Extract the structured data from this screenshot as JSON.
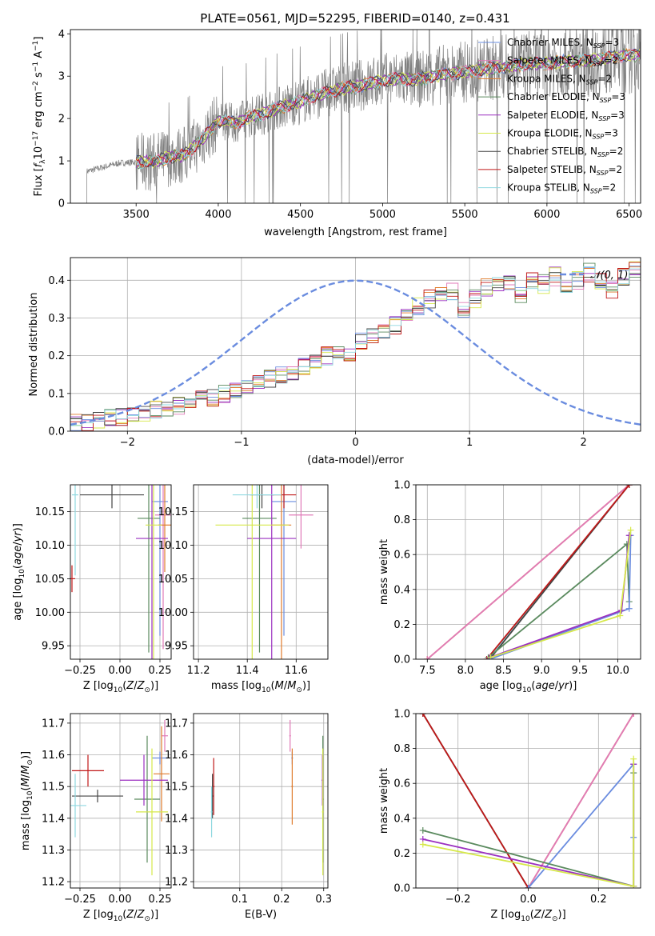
{
  "figure_title": "PLATE=0561, MJD=52295, FIBERID=0140, z=0.431",
  "colors": {
    "Chabrier MILES": "#6a8cdf",
    "Salpeter MILES": "#e07ab8",
    "Kroupa MILES": "#e07b2c",
    "Chabrier ELODIE": "#5a8a5e",
    "Salpeter ELODIE": "#9b30c0",
    "Kroupa ELODIE": "#d6e84a",
    "Chabrier STELIB": "#444444",
    "Salpeter STELIB": "#c01818",
    "Kroupa STELIB": "#8fd8e0",
    "data": "#808080",
    "gauss": "#6a8cdf"
  },
  "legend_labels": [
    {
      "key": "Chabrier MILES",
      "pre": "Chabrier MILES, N",
      "sub": "SSP",
      "post": "=3"
    },
    {
      "key": "Salpeter MILES",
      "pre": "Salpeter MILES, N",
      "sub": "SSP",
      "post": "=2"
    },
    {
      "key": "Kroupa MILES",
      "pre": "Kroupa MILES, N",
      "sub": "SSP",
      "post": "=2"
    },
    {
      "key": "Chabrier ELODIE",
      "pre": "Chabrier ELODIE, N",
      "sub": "SSP",
      "post": "=3"
    },
    {
      "key": "Salpeter ELODIE",
      "pre": "Salpeter ELODIE, N",
      "sub": "SSP",
      "post": "=3"
    },
    {
      "key": "Kroupa ELODIE",
      "pre": "Kroupa ELODIE, N",
      "sub": "SSP",
      "post": "=3"
    },
    {
      "key": "Chabrier STELIB",
      "pre": "Chabrier STELIB, N",
      "sub": "SSP",
      "post": "=2"
    },
    {
      "key": "Salpeter STELIB",
      "pre": "Salpeter STELIB, N",
      "sub": "SSP",
      "post": "=2"
    },
    {
      "key": "Kroupa STELIB",
      "pre": "Kroupa STELIB, N",
      "sub": "SSP",
      "post": "=2"
    }
  ],
  "chart_data": [
    {
      "id": "spectrum",
      "type": "line",
      "xlabel": "wavelength [Angstrom, rest frame]",
      "ylabel": "Flux [f_λ 10^-17 erg cm^-2 s^-1 A^-1]",
      "xlim": [
        3100,
        6570
      ],
      "ylim": [
        0,
        4.1
      ],
      "xticks": [
        3500,
        4000,
        4500,
        5000,
        5500,
        6000,
        6500
      ],
      "yticks": [
        0,
        1,
        2,
        3,
        4
      ],
      "continuum_nodes": [
        [
          3200,
          0.75
        ],
        [
          3300,
          0.85
        ],
        [
          3400,
          0.95
        ],
        [
          3500,
          0.97
        ],
        [
          3600,
          0.98
        ],
        [
          3700,
          1.08
        ],
        [
          3800,
          1.15
        ],
        [
          3900,
          1.5
        ],
        [
          4000,
          1.95
        ],
        [
          4100,
          1.9
        ],
        [
          4200,
          2.05
        ],
        [
          4300,
          2.15
        ],
        [
          4400,
          2.3
        ],
        [
          4500,
          2.4
        ],
        [
          4600,
          2.55
        ],
        [
          4700,
          2.65
        ],
        [
          4800,
          2.75
        ],
        [
          4900,
          2.8
        ],
        [
          5000,
          2.9
        ],
        [
          5100,
          2.95
        ],
        [
          5200,
          2.9
        ],
        [
          5300,
          3.0
        ],
        [
          5400,
          3.05
        ],
        [
          5500,
          3.1
        ],
        [
          5600,
          3.15
        ],
        [
          5700,
          3.2
        ],
        [
          5800,
          3.25
        ],
        [
          5900,
          3.3
        ],
        [
          6000,
          3.3
        ],
        [
          6100,
          3.35
        ],
        [
          6200,
          3.35
        ],
        [
          6300,
          3.4
        ],
        [
          6400,
          3.45
        ],
        [
          6500,
          3.5
        ]
      ],
      "data_start": 3200,
      "models_start": 3500,
      "legend_position": "top-right"
    },
    {
      "id": "residuals",
      "type": "histogram",
      "xlabel": "(data-model)/error",
      "ylabel": "Normed distribution",
      "xlim": [
        -2.5,
        2.5
      ],
      "ylim": [
        0,
        0.46
      ],
      "xticks": [
        -2,
        -1,
        0,
        1,
        2
      ],
      "yticks": [
        0.0,
        0.1,
        0.2,
        0.3,
        0.4
      ],
      "bin_width": 0.1,
      "base_profile": [
        0.02,
        0.025,
        0.03,
        0.035,
        0.04,
        0.045,
        0.05,
        0.055,
        0.06,
        0.07,
        0.08,
        0.085,
        0.09,
        0.1,
        0.11,
        0.12,
        0.13,
        0.14,
        0.15,
        0.16,
        0.17,
        0.18,
        0.2,
        0.2,
        0.21,
        0.24,
        0.25,
        0.27,
        0.28,
        0.3,
        0.33,
        0.35,
        0.36,
        0.37,
        0.32,
        0.35,
        0.38,
        0.39,
        0.4,
        0.36,
        0.4,
        0.39,
        0.41,
        0.38,
        0.4,
        0.42,
        0.4,
        0.37,
        0.41,
        0.43,
        0.4,
        0.35,
        0.33,
        0.3,
        0.28,
        0.26,
        0.24,
        0.23,
        0.2,
        0.18,
        0.17,
        0.15,
        0.13,
        0.12,
        0.11,
        0.1,
        0.09,
        0.08,
        0.07,
        0.06,
        0.055,
        0.05,
        0.045,
        0.04,
        0.035,
        0.03,
        0.03,
        0.025,
        0.025,
        0.02
      ],
      "legend": "N(0,1)",
      "legend_position": "top-right"
    },
    {
      "id": "age_vs_Z",
      "type": "errorbar",
      "xlabel": "Z [log10(Z/Z_sun)]",
      "ylabel": "age [log10(age/yr)]",
      "xlim": [
        -0.31,
        0.32
      ],
      "ylim": [
        9.93,
        10.19
      ],
      "xticks": [
        -0.25,
        0.0,
        0.25
      ],
      "yticks": [
        9.95,
        10.0,
        10.05,
        10.1,
        10.15
      ],
      "points": [
        {
          "key": "Chabrier MILES",
          "x": 0.25,
          "y": 10.165,
          "xerr": 0.05,
          "yerr": 0.2
        },
        {
          "key": "Salpeter MILES",
          "x": 0.27,
          "y": 10.145,
          "xerr": 0.05,
          "yerr": 0.2
        },
        {
          "key": "Kroupa MILES",
          "x": 0.28,
          "y": 10.13,
          "xerr": 0.04,
          "yerr": 0.07
        },
        {
          "key": "Chabrier ELODIE",
          "x": 0.18,
          "y": 10.14,
          "xerr": 0.07,
          "yerr": 0.2
        },
        {
          "key": "Salpeter ELODIE",
          "x": 0.2,
          "y": 10.11,
          "xerr": 0.1,
          "yerr": 0.2
        },
        {
          "key": "Kroupa ELODIE",
          "x": 0.21,
          "y": 10.13,
          "xerr": 0.05,
          "yerr": 0.2
        },
        {
          "key": "Chabrier STELIB",
          "x": -0.05,
          "y": 10.175,
          "xerr": 0.2,
          "yerr": 0.02
        },
        {
          "key": "Salpeter STELIB",
          "x": -0.3,
          "y": 10.05,
          "xerr": 0.02,
          "yerr": 0.02
        },
        {
          "key": "Kroupa STELIB",
          "x": -0.28,
          "y": 10.175,
          "xerr": 0.02,
          "yerr": 0.12
        }
      ]
    },
    {
      "id": "age_vs_mass",
      "type": "errorbar",
      "xlabel": "mass [log10(M/M_sun)]",
      "ylabel": "",
      "xlim": [
        11.18,
        11.73
      ],
      "ylim": [
        9.93,
        10.19
      ],
      "xticks": [
        11.2,
        11.4,
        11.6
      ],
      "yticks": [
        9.95,
        10.0,
        10.05,
        10.1,
        10.15
      ],
      "points": [
        {
          "key": "Chabrier MILES",
          "x": 11.55,
          "y": 10.165,
          "xerr": 0.05,
          "yerr": 0.2
        },
        {
          "key": "Salpeter MILES",
          "x": 11.62,
          "y": 10.145,
          "xerr": 0.05,
          "yerr": 0.05
        },
        {
          "key": "Kroupa MILES",
          "x": 11.54,
          "y": 10.13,
          "xerr": 0.04,
          "yerr": 0.2
        },
        {
          "key": "Chabrier ELODIE",
          "x": 11.45,
          "y": 10.14,
          "xerr": 0.07,
          "yerr": 0.2
        },
        {
          "key": "Salpeter ELODIE",
          "x": 11.5,
          "y": 10.11,
          "xerr": 0.1,
          "yerr": 0.2
        },
        {
          "key": "Kroupa ELODIE",
          "x": 11.42,
          "y": 10.13,
          "xerr": 0.15,
          "yerr": 0.2
        },
        {
          "key": "Chabrier STELIB",
          "x": 11.46,
          "y": 10.175,
          "xerr": 0.05,
          "yerr": 0.02
        },
        {
          "key": "Salpeter STELIB",
          "x": 11.55,
          "y": 10.175,
          "xerr": 0.05,
          "yerr": 0.02
        },
        {
          "key": "Kroupa STELIB",
          "x": 11.44,
          "y": 10.175,
          "xerr": 0.1,
          "yerr": 0.02
        }
      ]
    },
    {
      "id": "weight_vs_age",
      "type": "line",
      "xlabel": "age [log10(age/yr)]",
      "ylabel": "mass weight",
      "xlim": [
        7.35,
        10.3
      ],
      "ylim": [
        0,
        1
      ],
      "xticks": [
        7.5,
        8.0,
        8.5,
        9.0,
        9.5,
        10.0
      ],
      "yticks": [
        0.0,
        0.2,
        0.4,
        0.6,
        0.8,
        1.0
      ],
      "series": [
        {
          "key": "Kroupa MILES",
          "x": [
            7.5,
            10.15
          ],
          "y": [
            0.0,
            1.0
          ]
        },
        {
          "key": "Salpeter MILES",
          "x": [
            7.5,
            10.15
          ],
          "y": [
            0.0,
            1.0
          ]
        },
        {
          "key": "Kroupa STELIB",
          "x": [
            8.3,
            10.15
          ],
          "y": [
            0.0,
            1.0
          ]
        },
        {
          "key": "Chabrier STELIB",
          "x": [
            8.32,
            10.15
          ],
          "y": [
            0.0,
            1.0
          ]
        },
        {
          "key": "Salpeter STELIB",
          "x": [
            8.28,
            10.15
          ],
          "y": [
            0.0,
            1.0
          ]
        },
        {
          "key": "Chabrier ELODIE",
          "x": [
            8.3,
            10.12,
            10.15
          ],
          "y": [
            0.01,
            0.66,
            0.33
          ]
        },
        {
          "key": "Chabrier MILES",
          "x": [
            8.32,
            10.15,
            10.17
          ],
          "y": [
            0.0,
            0.29,
            0.71
          ]
        },
        {
          "key": "Salpeter ELODIE",
          "x": [
            8.32,
            10.05,
            10.15
          ],
          "y": [
            0.01,
            0.28,
            0.71
          ]
        },
        {
          "key": "Kroupa ELODIE",
          "x": [
            8.33,
            10.03,
            10.17
          ],
          "y": [
            0.01,
            0.25,
            0.74
          ]
        }
      ]
    },
    {
      "id": "mass_vs_Z",
      "type": "errorbar",
      "xlabel": "Z [log10(Z/Z_sun)]",
      "ylabel": "mass [log10(M/M_sun)]",
      "xlim": [
        -0.31,
        0.32
      ],
      "ylim": [
        11.18,
        11.73
      ],
      "xticks": [
        -0.25,
        0.0,
        0.25
      ],
      "yticks": [
        11.2,
        11.3,
        11.4,
        11.5,
        11.6,
        11.7
      ],
      "points": [
        {
          "key": "Chabrier MILES",
          "x": 0.25,
          "y": 11.59,
          "xerr": 0.05,
          "yerr": 0.02
        },
        {
          "key": "Salpeter MILES",
          "x": 0.28,
          "y": 11.66,
          "xerr": 0.02,
          "yerr": 0.05
        },
        {
          "key": "Kroupa MILES",
          "x": 0.26,
          "y": 11.54,
          "xerr": 0.05,
          "yerr": 0.15
        },
        {
          "key": "Chabrier ELODIE",
          "x": 0.17,
          "y": 11.46,
          "xerr": 0.08,
          "yerr": 0.2
        },
        {
          "key": "Salpeter ELODIE",
          "x": 0.15,
          "y": 11.52,
          "xerr": 0.15,
          "yerr": 0.08
        },
        {
          "key": "Kroupa ELODIE",
          "x": 0.2,
          "y": 11.42,
          "xerr": 0.1,
          "yerr": 0.2
        },
        {
          "key": "Chabrier STELIB",
          "x": -0.14,
          "y": 11.47,
          "xerr": 0.16,
          "yerr": 0.02
        },
        {
          "key": "Salpeter STELIB",
          "x": -0.2,
          "y": 11.55,
          "xerr": 0.1,
          "yerr": 0.05
        },
        {
          "key": "Kroupa STELIB",
          "x": -0.28,
          "y": 11.44,
          "xerr": 0.07,
          "yerr": 0.1
        }
      ]
    },
    {
      "id": "mass_vs_ebv",
      "type": "errorbar",
      "xlabel": "E(B-V)",
      "ylabel": "",
      "xlim": [
        -0.01,
        0.31
      ],
      "ylim": [
        11.18,
        11.73
      ],
      "xticks": [
        0.1,
        0.2,
        0.3
      ],
      "yticks": [
        11.2,
        11.3,
        11.4,
        11.5,
        11.6,
        11.7
      ],
      "points": [
        {
          "key": "Chabrier MILES",
          "x": 0.225,
          "y": 11.59,
          "xerr": 0.002,
          "yerr": 0.02
        },
        {
          "key": "Salpeter MILES",
          "x": 0.22,
          "y": 11.66,
          "xerr": 0.002,
          "yerr": 0.05
        },
        {
          "key": "Kroupa MILES",
          "x": 0.225,
          "y": 11.5,
          "xerr": 0.002,
          "yerr": 0.12
        },
        {
          "key": "Chabrier ELODIE",
          "x": 0.298,
          "y": 11.46,
          "xerr": 0.002,
          "yerr": 0.2
        },
        {
          "key": "Salpeter ELODIE",
          "x": 0.297,
          "y": 11.52,
          "xerr": 0.002,
          "yerr": 0.08
        },
        {
          "key": "Kroupa ELODIE",
          "x": 0.298,
          "y": 11.42,
          "xerr": 0.002,
          "yerr": 0.2
        },
        {
          "key": "Chabrier STELIB",
          "x": 0.035,
          "y": 11.47,
          "xerr": 0.002,
          "yerr": 0.07
        },
        {
          "key": "Salpeter STELIB",
          "x": 0.038,
          "y": 11.5,
          "xerr": 0.002,
          "yerr": 0.09
        },
        {
          "key": "Kroupa STELIB",
          "x": 0.033,
          "y": 11.42,
          "xerr": 0.002,
          "yerr": 0.08
        }
      ]
    },
    {
      "id": "weight_vs_Z",
      "type": "line",
      "xlabel": "Z [log10(Z/Z_sun)]",
      "ylabel": "mass weight",
      "xlim": [
        -0.32,
        0.32
      ],
      "ylim": [
        0,
        1
      ],
      "xticks": [
        -0.2,
        0.0,
        0.2
      ],
      "yticks": [
        0.0,
        0.2,
        0.4,
        0.6,
        0.8,
        1.0
      ],
      "series": [
        {
          "key": "Kroupa MILES",
          "x": [
            0.0,
            0.3
          ],
          "y": [
            0.0,
            1.0
          ]
        },
        {
          "key": "Salpeter MILES",
          "x": [
            0.0,
            0.3
          ],
          "y": [
            0.0,
            1.0
          ]
        },
        {
          "key": "Kroupa STELIB",
          "x": [
            -0.3,
            0.0
          ],
          "y": [
            1.0,
            0.0
          ]
        },
        {
          "key": "Chabrier STELIB",
          "x": [
            -0.3,
            0.0
          ],
          "y": [
            1.0,
            0.0
          ]
        },
        {
          "key": "Salpeter STELIB",
          "x": [
            -0.3,
            0.0
          ],
          "y": [
            1.0,
            0.0
          ]
        },
        {
          "key": "Chabrier MILES",
          "x": [
            0.0,
            0.3,
            0.3
          ],
          "y": [
            0.0,
            0.71,
            0.29
          ]
        },
        {
          "key": "Chabrier ELODIE",
          "x": [
            -0.3,
            0.3,
            0.3
          ],
          "y": [
            0.33,
            0.01,
            0.66
          ]
        },
        {
          "key": "Salpeter ELODIE",
          "x": [
            -0.3,
            0.3,
            0.3
          ],
          "y": [
            0.28,
            0.01,
            0.71
          ]
        },
        {
          "key": "Kroupa ELODIE",
          "x": [
            -0.3,
            0.3,
            0.3
          ],
          "y": [
            0.25,
            0.01,
            0.74
          ]
        }
      ]
    }
  ]
}
